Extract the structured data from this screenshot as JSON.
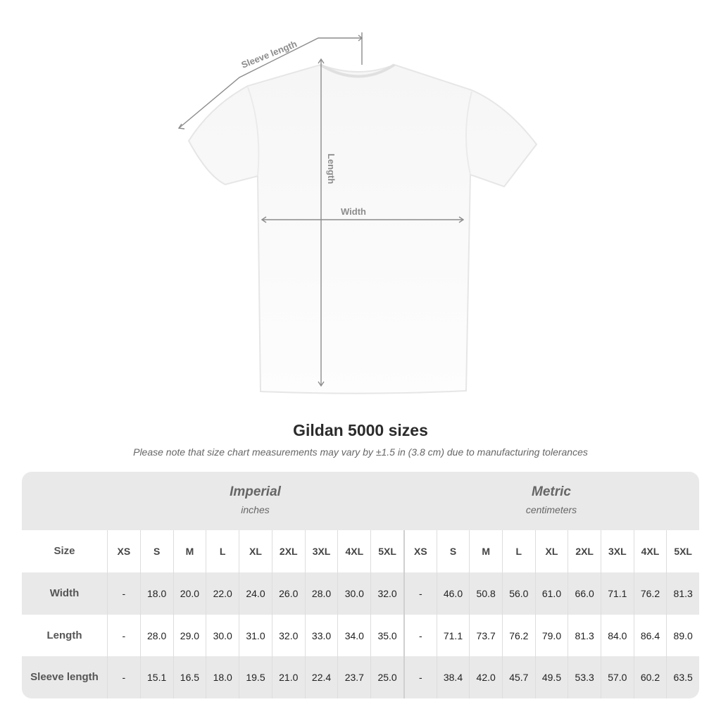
{
  "diagram": {
    "sleeve_label": "Sleeve length",
    "length_label": "Length",
    "width_label": "Width"
  },
  "title": "Gildan 5000 sizes",
  "note": "Please note that size chart measurements may vary by ±1.5 in (3.8 cm) due to manufacturing tolerances",
  "groups": {
    "imperial": {
      "title": "Imperial",
      "unit": "inches"
    },
    "metric": {
      "title": "Metric",
      "unit": "centimeters"
    }
  },
  "size_label": "Size",
  "sizes": [
    "XS",
    "S",
    "M",
    "L",
    "XL",
    "2XL",
    "3XL",
    "4XL",
    "5XL"
  ],
  "rows": [
    {
      "label": "Width",
      "imperial": [
        "-",
        "18.0",
        "20.0",
        "22.0",
        "24.0",
        "26.0",
        "28.0",
        "30.0",
        "32.0"
      ],
      "metric": [
        "-",
        "46.0",
        "50.8",
        "56.0",
        "61.0",
        "66.0",
        "71.1",
        "76.2",
        "81.3"
      ]
    },
    {
      "label": "Length",
      "imperial": [
        "-",
        "28.0",
        "29.0",
        "30.0",
        "31.0",
        "32.0",
        "33.0",
        "34.0",
        "35.0"
      ],
      "metric": [
        "-",
        "71.1",
        "73.7",
        "76.2",
        "79.0",
        "81.3",
        "84.0",
        "86.4",
        "89.0"
      ]
    },
    {
      "label": "Sleeve length",
      "imperial": [
        "-",
        "15.1",
        "16.5",
        "18.0",
        "19.5",
        "21.0",
        "22.4",
        "23.7",
        "25.0"
      ],
      "metric": [
        "-",
        "38.4",
        "42.0",
        "45.7",
        "49.5",
        "53.3",
        "57.0",
        "60.2",
        "63.5"
      ]
    }
  ]
}
